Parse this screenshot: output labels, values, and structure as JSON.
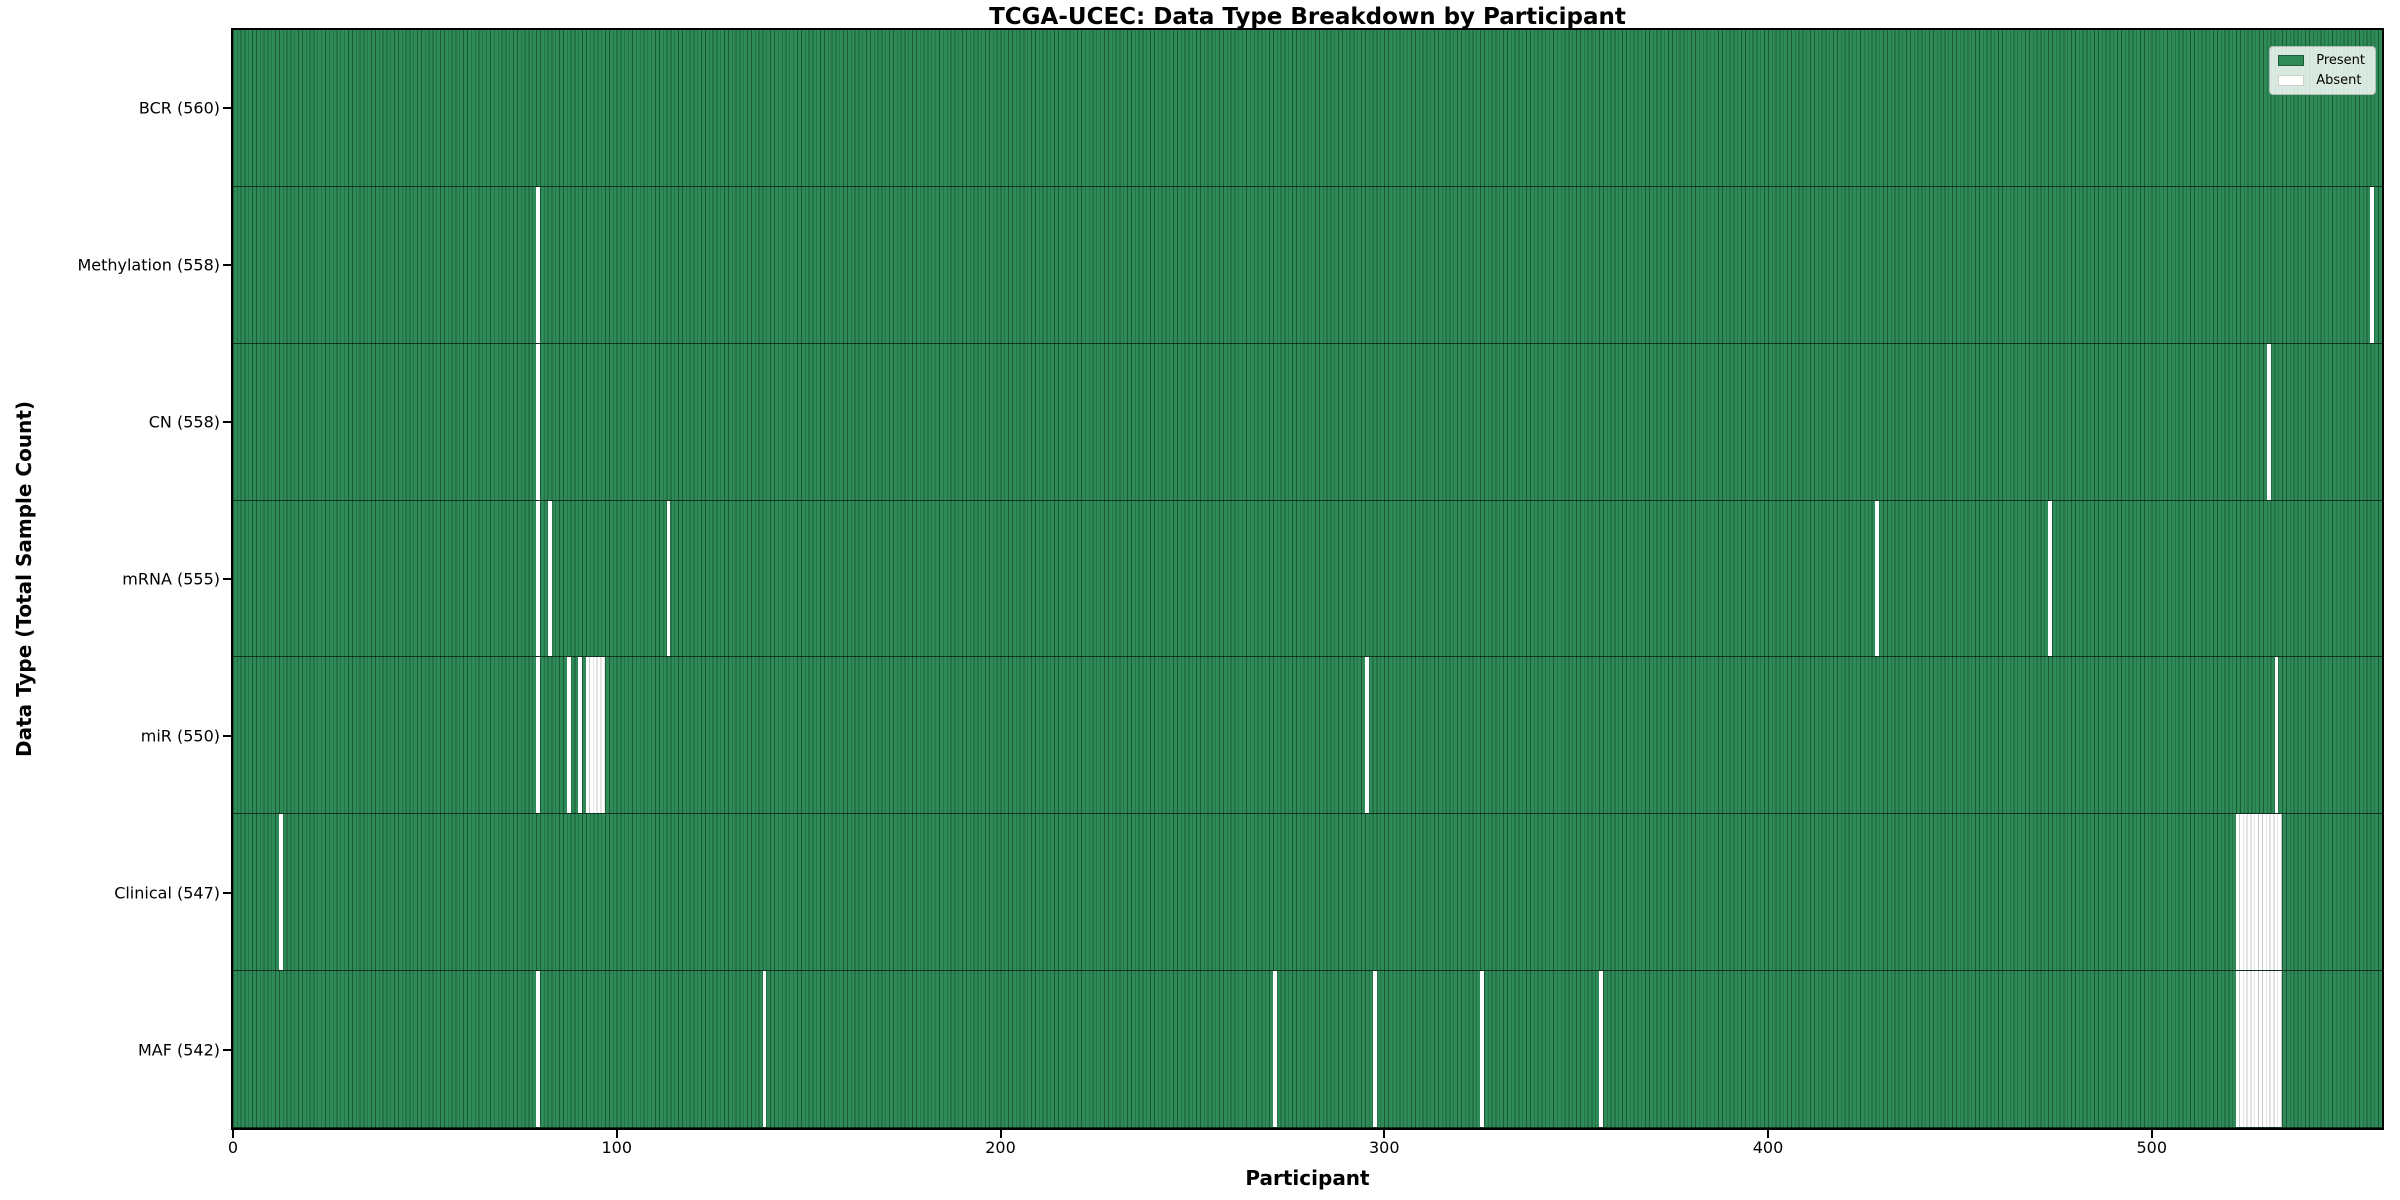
{
  "chart_data": {
    "type": "heatmap",
    "title": "TCGA-UCEC: Data Type Breakdown by Participant",
    "xlabel": "Participant",
    "ylabel": "Data Type (Total Sample Count)",
    "x_range": [
      0,
      560
    ],
    "x_ticks": [
      0,
      100,
      200,
      300,
      400,
      500
    ],
    "grid": false,
    "legend_position": "upper right",
    "legend_labels": [
      "Present",
      "Absent"
    ],
    "colors": {
      "present": "#2e8b57",
      "absent": "#ffffff",
      "bar_edge": "#1c5c3a"
    },
    "categories": [
      "BCR (560)",
      "Methylation (558)",
      "CN (558)",
      "mRNA (555)",
      "miR (550)",
      "Clinical (547)",
      "MAF (542)"
    ],
    "series": [
      {
        "name": "BCR",
        "total": 560,
        "absent_participants": []
      },
      {
        "name": "Methylation",
        "total": 558,
        "absent_participants": [
          79,
          557
        ]
      },
      {
        "name": "CN",
        "total": 558,
        "absent_participants": [
          79,
          530
        ]
      },
      {
        "name": "mRNA",
        "total": 555,
        "absent_participants": [
          79,
          82,
          113,
          428,
          473
        ]
      },
      {
        "name": "miR",
        "total": 550,
        "absent_participants": [
          79,
          87,
          90,
          92,
          93,
          94,
          95,
          96,
          295,
          532
        ]
      },
      {
        "name": "Clinical",
        "total": 547,
        "absent_participants": [
          12,
          522,
          523,
          524,
          525,
          526,
          527,
          528,
          529,
          530,
          531,
          532,
          533
        ]
      },
      {
        "name": "MAF",
        "total": 542,
        "absent_participants": [
          79,
          138,
          271,
          297,
          325,
          356,
          522,
          523,
          524,
          525,
          526,
          527,
          528,
          529,
          530,
          531,
          532,
          533
        ]
      }
    ]
  }
}
